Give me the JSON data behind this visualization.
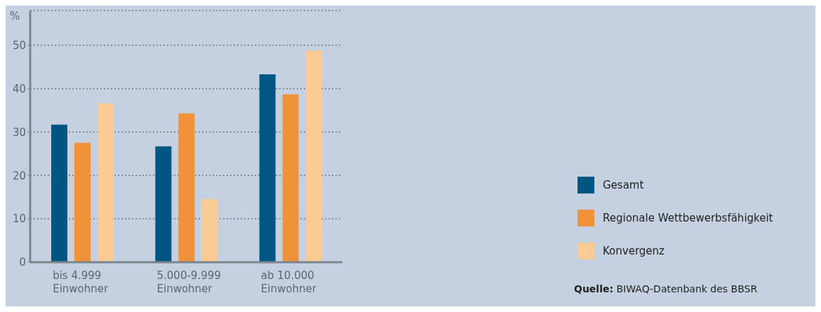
{
  "chart_data": {
    "type": "bar",
    "ylabel": "%",
    "categories": [
      "bis 4.999 Einwohner",
      "5.000-9.999 Einwohner",
      "ab 10.000 Einwohner"
    ],
    "series": [
      {
        "name": "Gesamt",
        "color": "#005682",
        "values": [
          31.7,
          26.7,
          43.3
        ]
      },
      {
        "name": "Regionale Wettbewerbsfähigkeit",
        "color": "#f0923a",
        "values": [
          27.5,
          34.3,
          38.7
        ]
      },
      {
        "name": "Konvergenz",
        "color": "#fbcb96",
        "values": [
          36.6,
          14.5,
          48.8
        ]
      }
    ],
    "ylim": [
      0,
      58
    ],
    "yticks": [
      0,
      10,
      20,
      30,
      40,
      50
    ],
    "grid": "y",
    "legend": "right",
    "annotations": [
      "Quelle: BIWAQ-Datenbank des BBSR"
    ]
  }
}
